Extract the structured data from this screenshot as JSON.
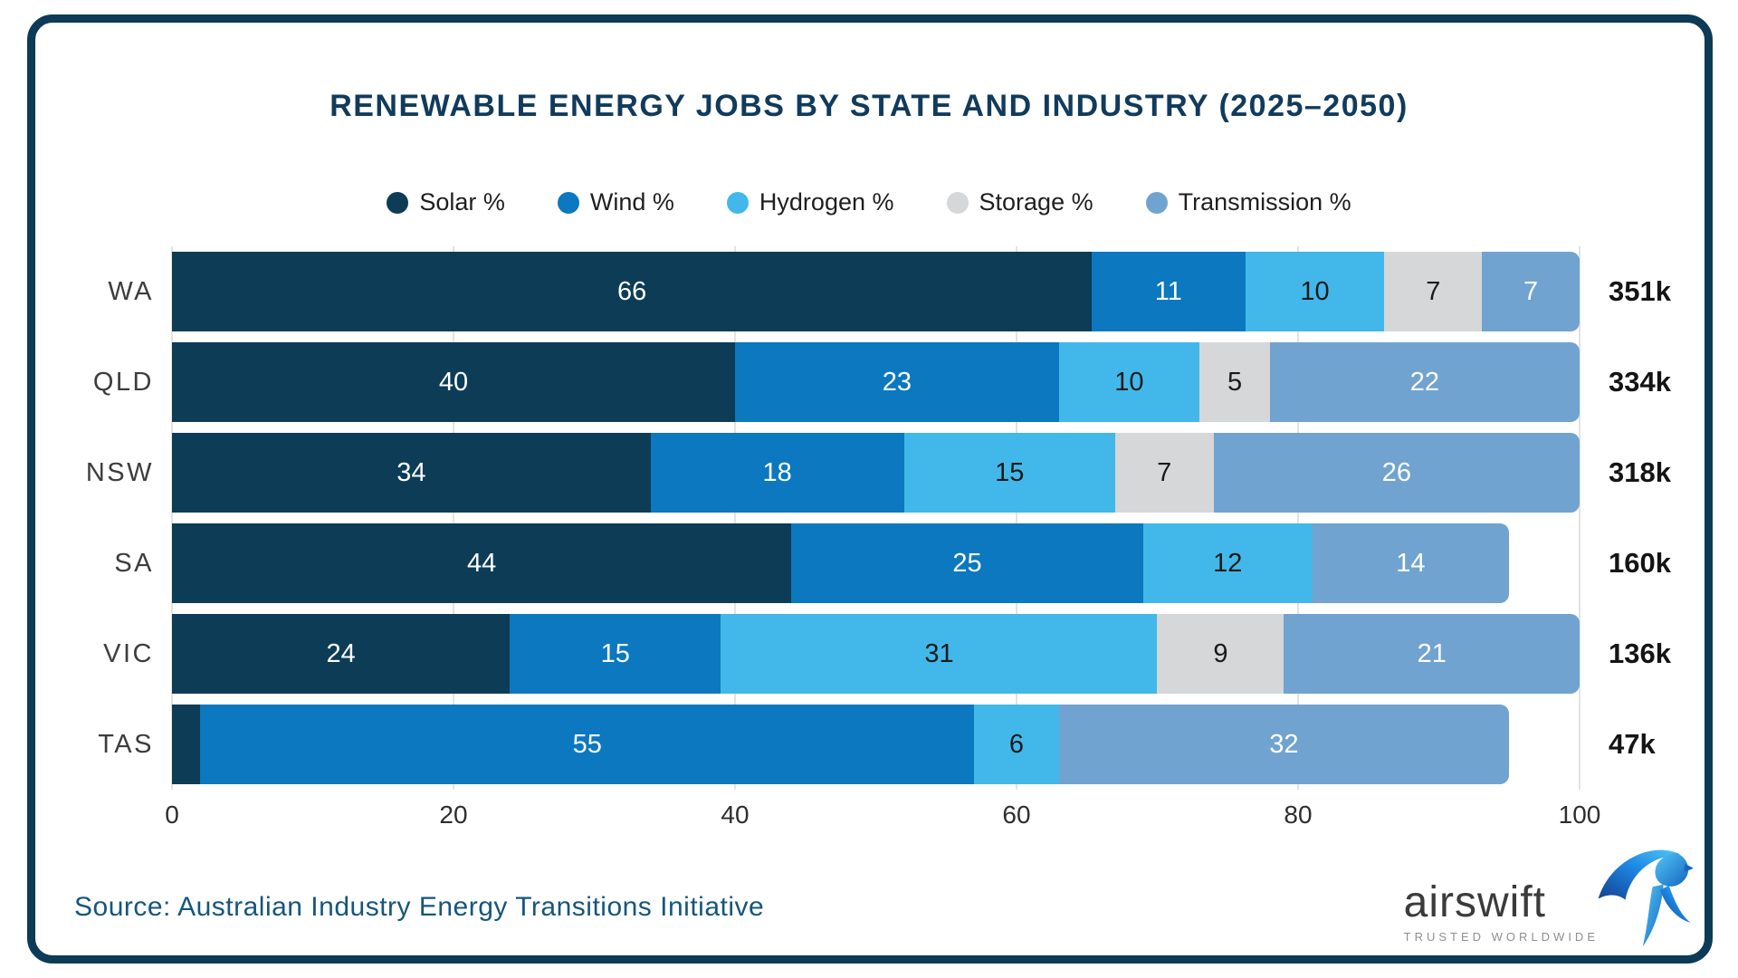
{
  "title": "RENEWABLE ENERGY JOBS BY STATE AND INDUSTRY (2025–2050)",
  "source_text": "Source: Australian Industry Energy Transitions Initiative",
  "logo": {
    "wordmark": "airswift",
    "tagline": "TRUSTED WORLDWIDE"
  },
  "ui_colors": {
    "frame": "#0d3a56",
    "title": "#113b5c",
    "source": "#16567c",
    "gridline": "#e3e3e3"
  },
  "chart_data": {
    "type": "bar",
    "orientation": "horizontal",
    "stacked": true,
    "title": "RENEWABLE ENERGY JOBS BY STATE AND INDUSTRY (2025–2050)",
    "categories": [
      "WA",
      "QLD",
      "NSW",
      "SA",
      "VIC",
      "TAS"
    ],
    "series": [
      {
        "name": "Solar %",
        "color": "#0d3c56",
        "label_color": "#ffffff",
        "values": [
          66,
          40,
          34,
          44,
          24,
          2
        ]
      },
      {
        "name": "Wind %",
        "color": "#0b78c0",
        "label_color": "#ffffff",
        "values": [
          11,
          23,
          18,
          25,
          15,
          55
        ]
      },
      {
        "name": "Hydrogen %",
        "color": "#41b8e9",
        "label_color": "#1a1a1a",
        "values": [
          10,
          10,
          15,
          12,
          31,
          6
        ]
      },
      {
        "name": "Storage %",
        "color": "#d5d7d9",
        "label_color": "#1a1a1a",
        "values": [
          7,
          5,
          7,
          0,
          9,
          0
        ]
      },
      {
        "name": "Transmission %",
        "color": "#71a3d0",
        "label_color": "#ffffff",
        "values": [
          7,
          22,
          26,
          14,
          21,
          32
        ]
      }
    ],
    "totals": [
      "351k",
      "334k",
      "318k",
      "160k",
      "136k",
      "47k"
    ],
    "xlim": [
      0,
      100
    ],
    "xticks": [
      0,
      20,
      40,
      60,
      80,
      100
    ],
    "legend_position": "top",
    "grid": "vertical",
    "min_label_value": 3
  }
}
